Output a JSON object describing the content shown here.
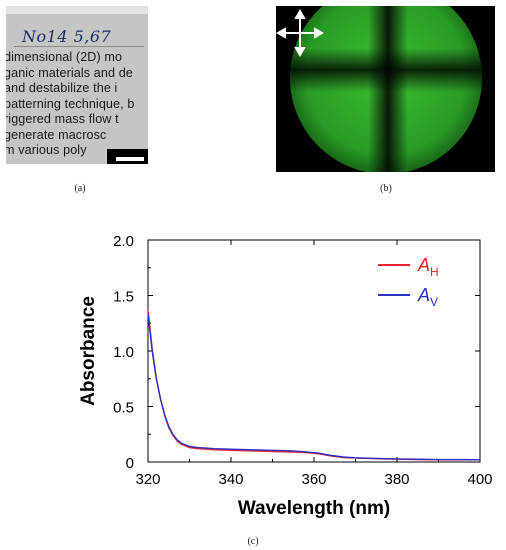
{
  "panel_a": {
    "handwriting": "No14 5,67",
    "text_lines": [
      "dimensional (2D) mo",
      "ganic materials and de",
      "and destabilize the i",
      "patterning technique, b",
      "riggered mass flow t",
      "generate macrosc",
      "m various poly"
    ],
    "caption": "(a)"
  },
  "panel_b": {
    "polarizer_icon": "double-arrow-cross-icon",
    "green": "#2fa82a",
    "caption": "(b)"
  },
  "panel_c": {
    "caption": "(c)"
  },
  "chart_data": {
    "type": "line",
    "xlabel": "Wavelength (nm)",
    "ylabel": "Absorbance",
    "xlim": [
      320,
      400
    ],
    "ylim": [
      0,
      2.0
    ],
    "xticks": [
      "320",
      "340",
      "360",
      "380",
      "400"
    ],
    "yticks": [
      "0",
      "0.5",
      "1.0",
      "1.5",
      "2.0"
    ],
    "legend_position": "top-right",
    "series": [
      {
        "name": "AH",
        "label_main": "A",
        "label_sub": "H",
        "color": "#e8242c",
        "x": [
          320,
          321,
          322,
          323,
          324,
          325,
          326,
          327,
          328,
          330,
          332,
          334,
          336,
          340,
          345,
          350,
          355,
          358,
          361,
          364,
          367,
          370,
          375,
          380,
          385,
          390,
          395,
          400
        ],
        "y": [
          1.37,
          1.02,
          0.76,
          0.57,
          0.42,
          0.31,
          0.24,
          0.19,
          0.16,
          0.13,
          0.12,
          0.115,
          0.11,
          0.105,
          0.1,
          0.095,
          0.09,
          0.085,
          0.075,
          0.055,
          0.04,
          0.035,
          0.03,
          0.025,
          0.022,
          0.02,
          0.02,
          0.02
        ]
      },
      {
        "name": "AV",
        "label_main": "A",
        "label_sub": "V",
        "color": "#2b2fc6",
        "x": [
          320,
          321,
          322,
          323,
          324,
          325,
          326,
          327,
          328,
          330,
          332,
          334,
          336,
          340,
          345,
          350,
          355,
          358,
          361,
          364,
          367,
          370,
          375,
          380,
          385,
          390,
          395,
          400
        ],
        "y": [
          1.34,
          1.0,
          0.75,
          0.57,
          0.43,
          0.32,
          0.25,
          0.2,
          0.17,
          0.14,
          0.13,
          0.125,
          0.12,
          0.115,
          0.11,
          0.105,
          0.1,
          0.09,
          0.08,
          0.06,
          0.045,
          0.038,
          0.032,
          0.028,
          0.025,
          0.022,
          0.022,
          0.02
        ]
      }
    ]
  }
}
